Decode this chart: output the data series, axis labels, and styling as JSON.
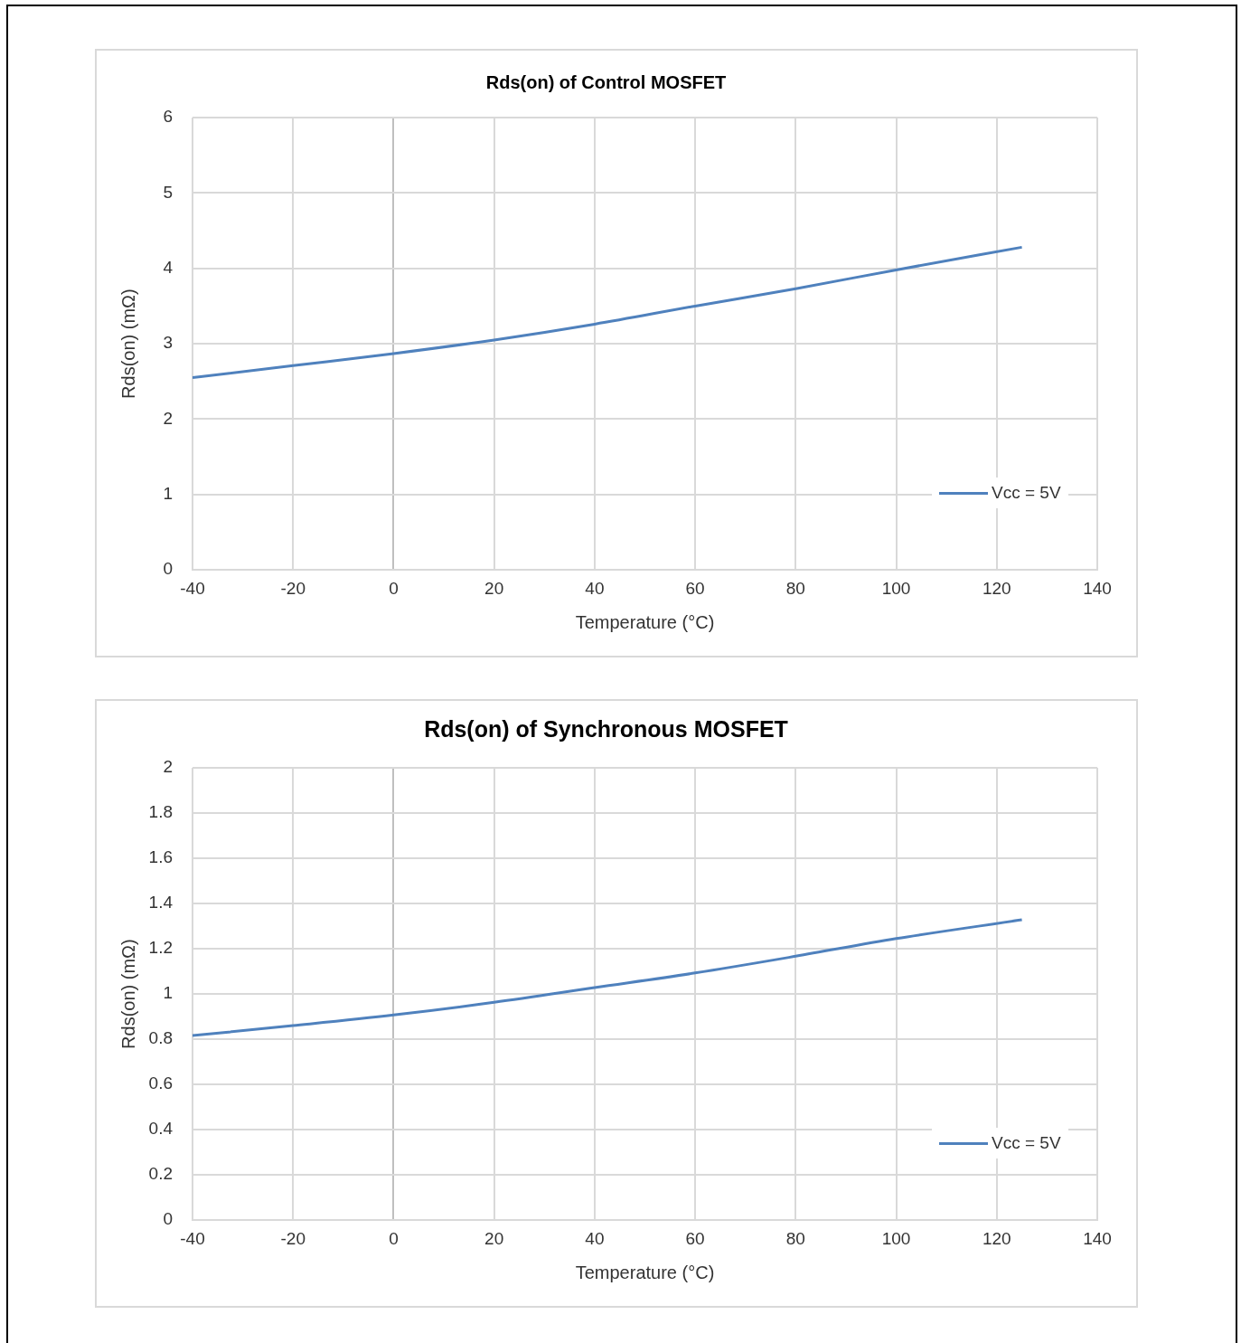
{
  "chart_data": [
    {
      "type": "line",
      "title": "Rds(on) of Control MOSFET",
      "xlabel": "Temperature (°C)",
      "ylabel": "Rds(on) (mΩ)",
      "x": [
        -40,
        -20,
        0,
        20,
        40,
        60,
        80,
        100,
        125
      ],
      "series": [
        {
          "name": "Vcc = 5V",
          "color": "#4f81bd",
          "values": [
            2.55,
            2.71,
            2.87,
            3.05,
            3.26,
            3.5,
            3.73,
            3.98,
            4.28
          ]
        }
      ],
      "xlim": [
        -40,
        140
      ],
      "xticks": [
        -40,
        -20,
        0,
        20,
        40,
        60,
        80,
        100,
        120,
        140
      ],
      "ylim": [
        0,
        6
      ],
      "yticks": [
        0,
        1,
        2,
        3,
        4,
        5,
        6
      ],
      "grid": true,
      "legend": "bottom right",
      "marker": "none",
      "line_style": "solid"
    },
    {
      "type": "line",
      "title": "Rds(on) of Synchronous MOSFET",
      "xlabel": "Temperature (°C)",
      "ylabel": "Rds(on) (mΩ)",
      "x": [
        -40,
        -20,
        0,
        20,
        40,
        60,
        80,
        100,
        125
      ],
      "series": [
        {
          "name": "Vcc = 5V",
          "color": "#4f81bd",
          "values": [
            0.816,
            0.86,
            0.907,
            0.963,
            1.028,
            1.093,
            1.167,
            1.245,
            1.328
          ]
        }
      ],
      "xlim": [
        -40,
        140
      ],
      "xticks": [
        -40,
        -20,
        0,
        20,
        40,
        60,
        80,
        100,
        120,
        140
      ],
      "ylim": [
        0,
        2
      ],
      "yticks": [
        0,
        0.2,
        0.4,
        0.6,
        0.8,
        1,
        1.2,
        1.4,
        1.6,
        1.8,
        2
      ],
      "grid": true,
      "legend": "bottom right",
      "marker": "none",
      "line_style": "solid"
    }
  ]
}
